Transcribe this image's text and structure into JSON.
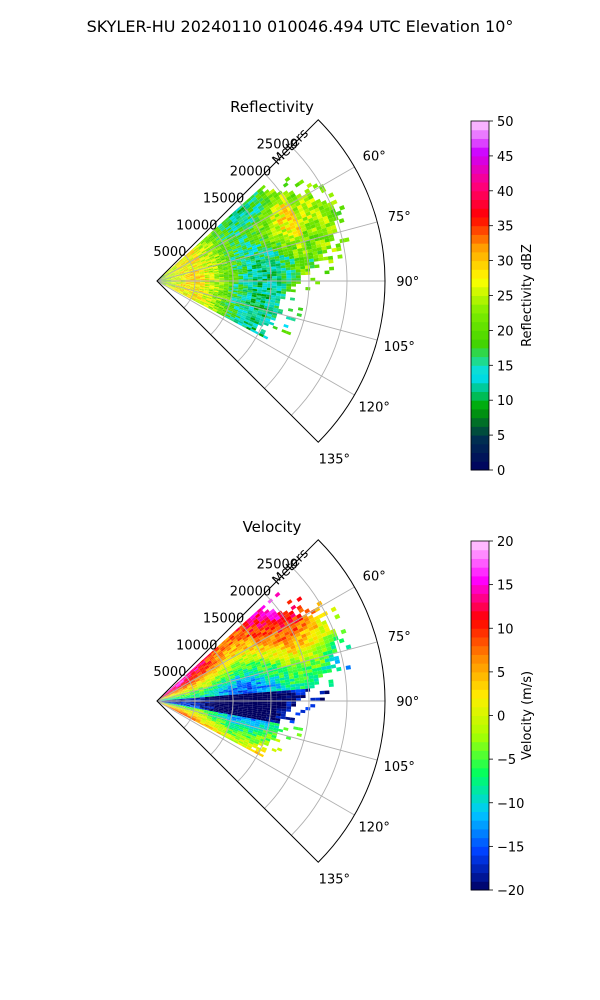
{
  "suptitle": "SKYLER-HU  20240110  010046.494 UTC Elevation 10°",
  "chart_data": [
    {
      "type": "heatmap",
      "title": "Reflectivity",
      "range_label": "Meters",
      "range_ticks": [
        5000,
        10000,
        15000,
        20000,
        25000
      ],
      "range_tick_labels": [
        "5000",
        "10000",
        "15000",
        "20000",
        "25000"
      ],
      "range_max": 30000,
      "azimuth_ticks": [
        60,
        75,
        90,
        105,
        120,
        135
      ],
      "azimuth_tick_labels": [
        "60°",
        "75°",
        "90°",
        "105°",
        "120°",
        "135°"
      ],
      "azimuth_range": [
        45,
        135
      ],
      "colorbar": {
        "label": "Reflectivity dBZ",
        "min": 0,
        "max": 50,
        "ticks": [
          0,
          5,
          10,
          15,
          20,
          25,
          30,
          35,
          40,
          45,
          50
        ],
        "tick_labels": [
          "0",
          "5",
          "10",
          "15",
          "20",
          "25",
          "30",
          "35",
          "40",
          "45",
          "50"
        ]
      }
    },
    {
      "type": "heatmap",
      "title": "Velocity",
      "range_label": "Meters",
      "range_ticks": [
        5000,
        10000,
        15000,
        20000,
        25000
      ],
      "range_tick_labels": [
        "5000",
        "10000",
        "15000",
        "20000",
        "25000"
      ],
      "range_max": 30000,
      "azimuth_ticks": [
        60,
        75,
        90,
        105,
        120,
        135
      ],
      "azimuth_tick_labels": [
        "60°",
        "75°",
        "90°",
        "105°",
        "120°",
        "135°"
      ],
      "azimuth_range": [
        45,
        135
      ],
      "colorbar": {
        "label": "Velocity (m/s)",
        "min": -20,
        "max": 20,
        "ticks": [
          -20,
          -15,
          -10,
          -5,
          0,
          5,
          10,
          15,
          20
        ],
        "tick_labels": [
          "−20",
          "−15",
          "−10",
          "−5",
          "0",
          "5",
          "10",
          "15",
          "20"
        ]
      }
    }
  ],
  "colors": {
    "grid": "#b0b0b0",
    "reflectivity_stops": [
      "#000060",
      "#003050",
      "#00aa00",
      "#00e0ff",
      "#44d400",
      "#80ee00",
      "#ffff00",
      "#ffa000",
      "#ff0000",
      "#ff0080",
      "#cc00ff",
      "#ffd0ff"
    ],
    "velocity_stops": [
      "#000060",
      "#0040ff",
      "#00c8ff",
      "#00ff60",
      "#aaff00",
      "#ffee00",
      "#ff8800",
      "#ff0000",
      "#ff00ff",
      "#ffd0ff"
    ]
  }
}
